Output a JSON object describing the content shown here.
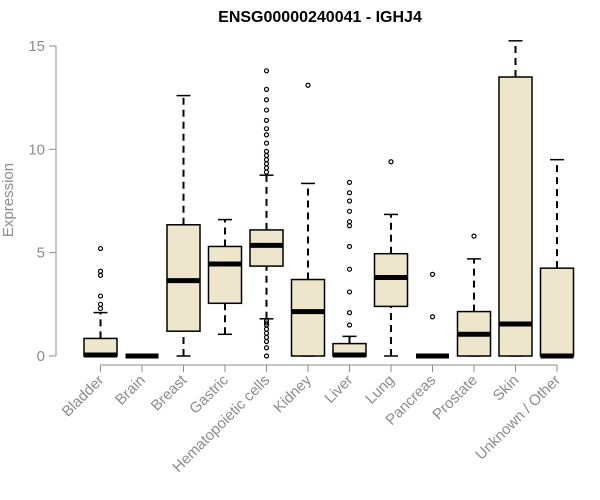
{
  "chart_data": {
    "type": "boxplot",
    "title": "ENSG00000240041 - IGHJ4",
    "xlabel": "",
    "ylabel": "Expression",
    "ylim": [
      0,
      15
    ],
    "yticks": [
      0,
      5,
      10,
      15
    ],
    "colors": {
      "box_fill": "#ede6cc",
      "axis": "#8c8c8c",
      "median": "#000000"
    },
    "categories": [
      "Bladder",
      "Brain",
      "Breast",
      "Gastric",
      "Hematopoietic cells",
      "Kidney",
      "Liver",
      "Lung",
      "Pancreas",
      "Prostate",
      "Skin",
      "Unknown / Other"
    ],
    "boxes": [
      {
        "name": "Bladder",
        "whisker_low": 0,
        "q1": 0,
        "median": 0.05,
        "q3": 0.85,
        "whisker_high": 2.1,
        "outliers": [
          2.3,
          2.5,
          2.9,
          3.9,
          4.1,
          5.2
        ]
      },
      {
        "name": "Brain",
        "whisker_low": 0,
        "q1": 0,
        "median": 0,
        "q3": 0,
        "whisker_high": 0,
        "outliers": []
      },
      {
        "name": "Breast",
        "whisker_low": 0,
        "q1": 1.2,
        "median": 3.65,
        "q3": 6.35,
        "whisker_high": 12.6,
        "outliers": []
      },
      {
        "name": "Gastric",
        "whisker_low": 1.05,
        "q1": 2.55,
        "median": 4.45,
        "q3": 5.3,
        "whisker_high": 6.6,
        "outliers": []
      },
      {
        "name": "Hematopoietic cells",
        "whisker_low": 1.8,
        "q1": 4.35,
        "median": 5.35,
        "q3": 6.1,
        "whisker_high": 8.75,
        "outliers": [
          0,
          0.4,
          0.7,
          0.9,
          1.1,
          1.3,
          1.5,
          1.6,
          1.7,
          8.9,
          9.1,
          9.3,
          9.5,
          9.7,
          9.9,
          10.3,
          10.7,
          11.0,
          11.4,
          11.9,
          12.4,
          12.9,
          13.8
        ]
      },
      {
        "name": "Kidney",
        "whisker_low": 0,
        "q1": 0,
        "median": 2.15,
        "q3": 3.7,
        "whisker_high": 8.35,
        "outliers": [
          13.1
        ]
      },
      {
        "name": "Liver",
        "whisker_low": 0,
        "q1": 0,
        "median": 0.05,
        "q3": 0.6,
        "whisker_high": 0.95,
        "outliers": [
          1.5,
          2.1,
          3.1,
          4.2,
          5.3,
          6.3,
          6.5,
          7.0,
          7.5,
          7.9,
          8.4
        ]
      },
      {
        "name": "Lung",
        "whisker_low": 0,
        "q1": 2.4,
        "median": 3.8,
        "q3": 4.95,
        "whisker_high": 6.85,
        "outliers": [
          9.4
        ]
      },
      {
        "name": "Pancreas",
        "whisker_low": 0,
        "q1": 0,
        "median": 0,
        "q3": 0,
        "whisker_high": 0,
        "outliers": [
          1.9,
          3.95
        ]
      },
      {
        "name": "Prostate",
        "whisker_low": 0,
        "q1": 0,
        "median": 1.05,
        "q3": 2.15,
        "whisker_high": 4.7,
        "outliers": [
          5.8
        ]
      },
      {
        "name": "Skin",
        "whisker_low": 0,
        "q1": 0,
        "median": 1.55,
        "q3": 13.5,
        "whisker_high": 15.25,
        "outliers": []
      },
      {
        "name": "Unknown / Other",
        "whisker_low": 0,
        "q1": 0,
        "median": 0,
        "q3": 4.25,
        "whisker_high": 9.5,
        "outliers": []
      }
    ]
  }
}
